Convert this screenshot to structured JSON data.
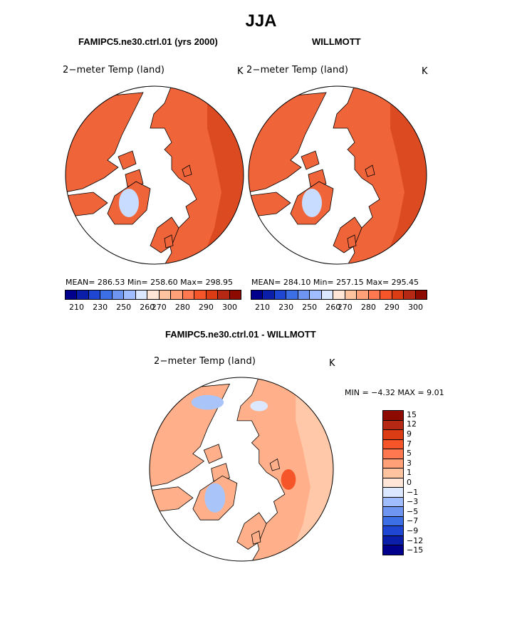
{
  "title": "JJA",
  "panels": [
    {
      "title": "FAMIPC5.ne30.ctrl.01 (yrs 2000)",
      "variable": "2−meter Temp (land)",
      "unit": "K",
      "stats": "MEAN= 286.53   Min= 258.60   Max= 298.95",
      "palette": "warm"
    },
    {
      "title": "WILLMOTT",
      "variable": "2−meter Temp (land)",
      "unit": "K",
      "stats": "MEAN= 284.10   Min= 257.15   Max= 295.45",
      "palette": "warm"
    },
    {
      "title": "FAMIPC5.ne30.ctrl.01 - WILLMOTT",
      "variable": "2−meter Temp (land)",
      "unit": "K",
      "stats": "MIN =    −4.32  MAX =     9.01",
      "palette": "diff"
    }
  ],
  "abs_colorbar": {
    "colors": [
      "#00008c",
      "#0a1eaa",
      "#1e46d2",
      "#3c6ee6",
      "#6e96f0",
      "#a0beff",
      "#dce8ff",
      "#ffe6d6",
      "#ffc3a0",
      "#ffa078",
      "#ff7850",
      "#f55528",
      "#dc3c14",
      "#b42814",
      "#8c0a00"
    ],
    "ticks": [
      "210",
      "230",
      "250",
      "260",
      "270",
      "280",
      "290",
      "300"
    ]
  },
  "diff_colorbar": {
    "colors": [
      "#8c0a00",
      "#b42814",
      "#dc3c14",
      "#f55528",
      "#ff7850",
      "#ffa078",
      "#ffc3a0",
      "#ffe6d6",
      "#dce8ff",
      "#a0beff",
      "#6e96f0",
      "#3c6ee6",
      "#1e46d2",
      "#0a1eaa",
      "#00008c"
    ],
    "ticks": [
      "15",
      "12",
      "9",
      "7",
      "5",
      "3",
      "1",
      "0",
      "−1",
      "−3",
      "−5",
      "−7",
      "−9",
      "−12",
      "−15"
    ]
  }
}
